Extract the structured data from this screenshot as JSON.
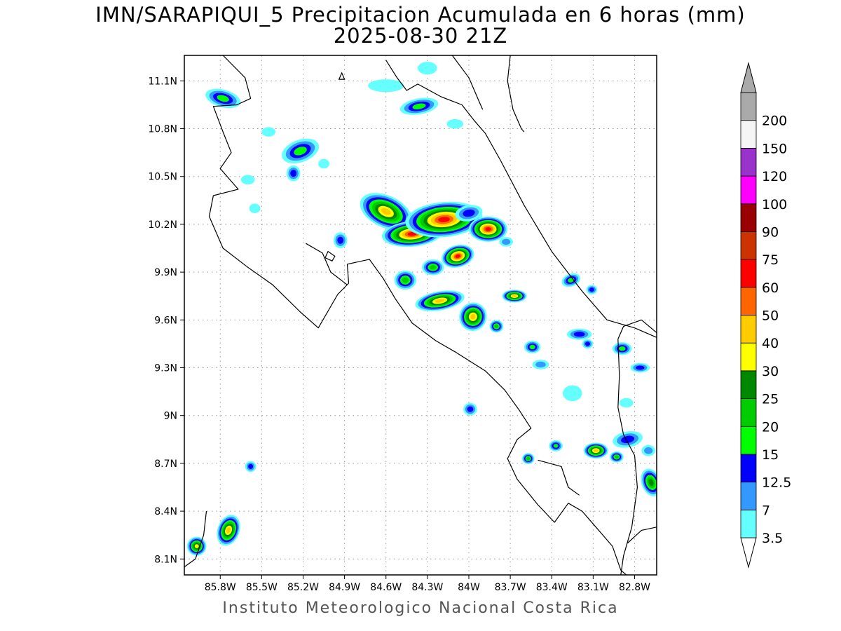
{
  "title_line1": "IMN/SARAPIQUI_5 Precipitacion Acumulada en 6 horas (mm)",
  "title_line2": "2025-08-30 21Z",
  "footer": "Instituto Meteorologico Nacional Costa Rica",
  "map": {
    "lon_range": [
      -86.06,
      -82.64
    ],
    "lat_range": [
      8.0,
      11.26
    ],
    "lon_ticks": [
      {
        "value": -85.8,
        "label": "85.8W"
      },
      {
        "value": -85.5,
        "label": "85.5W"
      },
      {
        "value": -85.2,
        "label": "85.2W"
      },
      {
        "value": -84.9,
        "label": "84.9W"
      },
      {
        "value": -84.6,
        "label": "84.6W"
      },
      {
        "value": -84.3,
        "label": "84.3W"
      },
      {
        "value": -84.0,
        "label": "84W"
      },
      {
        "value": -83.7,
        "label": "83.7W"
      },
      {
        "value": -83.4,
        "label": "83.4W"
      },
      {
        "value": -83.1,
        "label": "83.1W"
      },
      {
        "value": -82.8,
        "label": "82.8W"
      }
    ],
    "lat_ticks": [
      {
        "value": 11.1,
        "label": "11.1N"
      },
      {
        "value": 10.8,
        "label": "10.8N"
      },
      {
        "value": 10.5,
        "label": "10.5N"
      },
      {
        "value": 10.2,
        "label": "10.2N"
      },
      {
        "value": 9.9,
        "label": "9.9N"
      },
      {
        "value": 9.6,
        "label": "9.6N"
      },
      {
        "value": 9.3,
        "label": "9.3N"
      },
      {
        "value": 9.0,
        "label": "9N"
      },
      {
        "value": 8.7,
        "label": "8.7N"
      },
      {
        "value": 8.4,
        "label": "8.4N"
      },
      {
        "value": 8.1,
        "label": "8.1N"
      }
    ],
    "gridlines": true
  },
  "colorbar": {
    "levels": [
      "3.5",
      "7",
      "12.5",
      "15",
      "20",
      "25",
      "30",
      "40",
      "50",
      "60",
      "75",
      "90",
      "100",
      "120",
      "150",
      "200"
    ],
    "colors": [
      "#66ffff",
      "#3399ff",
      "#0000ff",
      "#00ff00",
      "#00cc00",
      "#008800",
      "#ffff00",
      "#ffcc00",
      "#ff6600",
      "#ff0000",
      "#cc3300",
      "#990000",
      "#ff00ff",
      "#9933cc",
      "#f5f5f5",
      "#aaaaaa"
    ],
    "max_arrow_color": "#aaaaaa",
    "min_arrow_color": "#ffffff"
  },
  "rain_cells": [
    {
      "lon": -85.78,
      "lat": 10.99,
      "rx": 0.13,
      "ry": 0.055,
      "peak": 4,
      "rot": 15
    },
    {
      "lon": -85.22,
      "lat": 10.66,
      "rx": 0.14,
      "ry": 0.07,
      "peak": 4,
      "rot": -20
    },
    {
      "lon": -85.27,
      "lat": 10.52,
      "rx": 0.05,
      "ry": 0.05,
      "peak": 3,
      "rot": 0
    },
    {
      "lon": -84.36,
      "lat": 10.94,
      "rx": 0.14,
      "ry": 0.05,
      "peak": 4,
      "rot": -10
    },
    {
      "lon": -84.6,
      "lat": 11.07,
      "rx": 0.13,
      "ry": 0.04,
      "peak": 1,
      "rot": 0
    },
    {
      "lon": -84.3,
      "lat": 11.18,
      "rx": 0.07,
      "ry": 0.04,
      "peak": 1,
      "rot": 0
    },
    {
      "lon": -84.1,
      "lat": 10.83,
      "rx": 0.06,
      "ry": 0.03,
      "peak": 1,
      "rot": 0
    },
    {
      "lon": -84.6,
      "lat": 10.28,
      "rx": 0.2,
      "ry": 0.1,
      "peak": 8,
      "rot": 25
    },
    {
      "lon": -84.41,
      "lat": 10.14,
      "rx": 0.22,
      "ry": 0.08,
      "peak": 10,
      "rot": -5
    },
    {
      "lon": -84.18,
      "lat": 10.23,
      "rx": 0.28,
      "ry": 0.11,
      "peak": 10,
      "rot": -5
    },
    {
      "lon": -84.0,
      "lat": 10.27,
      "rx": 0.1,
      "ry": 0.05,
      "peak": 3,
      "rot": -10
    },
    {
      "lon": -83.86,
      "lat": 10.17,
      "rx": 0.14,
      "ry": 0.08,
      "peak": 10,
      "rot": 0
    },
    {
      "lon": -84.08,
      "lat": 10.0,
      "rx": 0.12,
      "ry": 0.07,
      "peak": 10,
      "rot": -15
    },
    {
      "lon": -84.26,
      "lat": 9.93,
      "rx": 0.08,
      "ry": 0.05,
      "peak": 5,
      "rot": 0
    },
    {
      "lon": -84.46,
      "lat": 9.85,
      "rx": 0.08,
      "ry": 0.06,
      "peak": 5,
      "rot": 0
    },
    {
      "lon": -84.21,
      "lat": 9.72,
      "rx": 0.18,
      "ry": 0.06,
      "peak": 8,
      "rot": -10
    },
    {
      "lon": -83.97,
      "lat": 9.62,
      "rx": 0.1,
      "ry": 0.09,
      "peak": 8,
      "rot": 20
    },
    {
      "lon": -83.8,
      "lat": 9.56,
      "rx": 0.05,
      "ry": 0.04,
      "peak": 5,
      "rot": 0
    },
    {
      "lon": -83.67,
      "lat": 9.75,
      "rx": 0.09,
      "ry": 0.04,
      "peak": 8,
      "rot": 0
    },
    {
      "lon": -83.54,
      "lat": 9.43,
      "rx": 0.06,
      "ry": 0.04,
      "peak": 4,
      "rot": 0
    },
    {
      "lon": -83.48,
      "lat": 9.32,
      "rx": 0.06,
      "ry": 0.03,
      "peak": 2,
      "rot": 0
    },
    {
      "lon": -83.73,
      "lat": 10.09,
      "rx": 0.05,
      "ry": 0.03,
      "peak": 2,
      "rot": 0
    },
    {
      "lon": -83.26,
      "lat": 9.85,
      "rx": 0.07,
      "ry": 0.04,
      "peak": 4,
      "rot": -20
    },
    {
      "lon": -83.11,
      "lat": 9.79,
      "rx": 0.04,
      "ry": 0.03,
      "peak": 3,
      "rot": 0
    },
    {
      "lon": -83.2,
      "lat": 9.51,
      "rx": 0.09,
      "ry": 0.035,
      "peak": 3,
      "rot": 0
    },
    {
      "lon": -83.14,
      "lat": 9.45,
      "rx": 0.04,
      "ry": 0.03,
      "peak": 3,
      "rot": 0
    },
    {
      "lon": -82.89,
      "lat": 9.42,
      "rx": 0.07,
      "ry": 0.04,
      "peak": 4,
      "rot": 0
    },
    {
      "lon": -82.76,
      "lat": 9.3,
      "rx": 0.07,
      "ry": 0.03,
      "peak": 3,
      "rot": 0
    },
    {
      "lon": -83.25,
      "lat": 9.14,
      "rx": 0.07,
      "ry": 0.05,
      "peak": 1,
      "rot": 0
    },
    {
      "lon": -83.99,
      "lat": 9.04,
      "rx": 0.05,
      "ry": 0.04,
      "peak": 3,
      "rot": 0
    },
    {
      "lon": -83.08,
      "lat": 8.78,
      "rx": 0.09,
      "ry": 0.05,
      "peak": 8,
      "rot": 0
    },
    {
      "lon": -83.37,
      "lat": 8.81,
      "rx": 0.05,
      "ry": 0.035,
      "peak": 4,
      "rot": 0
    },
    {
      "lon": -83.57,
      "lat": 8.73,
      "rx": 0.045,
      "ry": 0.035,
      "peak": 5,
      "rot": 0
    },
    {
      "lon": -82.93,
      "lat": 8.74,
      "rx": 0.05,
      "ry": 0.035,
      "peak": 5,
      "rot": 0
    },
    {
      "lon": -82.85,
      "lat": 8.85,
      "rx": 0.11,
      "ry": 0.05,
      "peak": 3,
      "rot": -10
    },
    {
      "lon": -82.68,
      "lat": 8.58,
      "rx": 0.07,
      "ry": 0.09,
      "peak": 6,
      "rot": -20
    },
    {
      "lon": -82.7,
      "lat": 8.78,
      "rx": 0.05,
      "ry": 0.035,
      "peak": 2,
      "rot": 0
    },
    {
      "lon": -85.74,
      "lat": 8.28,
      "rx": 0.08,
      "ry": 0.1,
      "peak": 8,
      "rot": 20
    },
    {
      "lon": -85.97,
      "lat": 8.18,
      "rx": 0.07,
      "ry": 0.06,
      "peak": 7,
      "rot": 0
    },
    {
      "lon": -85.58,
      "lat": 8.68,
      "rx": 0.04,
      "ry": 0.035,
      "peak": 3,
      "rot": 0
    },
    {
      "lon": -84.93,
      "lat": 10.1,
      "rx": 0.05,
      "ry": 0.05,
      "peak": 3,
      "rot": 0
    },
    {
      "lon": -85.45,
      "lat": 10.78,
      "rx": 0.05,
      "ry": 0.03,
      "peak": 1,
      "rot": 0
    },
    {
      "lon": -85.6,
      "lat": 10.48,
      "rx": 0.05,
      "ry": 0.03,
      "peak": 1,
      "rot": 0
    },
    {
      "lon": -85.05,
      "lat": 10.58,
      "rx": 0.04,
      "ry": 0.03,
      "peak": 1,
      "rot": 0
    },
    {
      "lon": -85.55,
      "lat": 10.3,
      "rx": 0.04,
      "ry": 0.03,
      "peak": 1,
      "rot": 0
    },
    {
      "lon": -82.86,
      "lat": 9.08,
      "rx": 0.05,
      "ry": 0.03,
      "peak": 1,
      "rot": 0
    }
  ],
  "coastlines": [
    [
      [
        -85.78,
        11.26
      ],
      [
        -85.62,
        11.12
      ],
      [
        -85.58,
        10.99
      ],
      [
        -85.68,
        10.95
      ],
      [
        -85.85,
        10.94
      ],
      [
        -85.78,
        10.78
      ],
      [
        -85.72,
        10.65
      ],
      [
        -85.8,
        10.55
      ],
      [
        -85.67,
        10.42
      ],
      [
        -85.85,
        10.38
      ],
      [
        -85.88,
        10.25
      ],
      [
        -85.78,
        10.05
      ],
      [
        -85.6,
        9.93
      ],
      [
        -85.42,
        9.82
      ],
      [
        -85.22,
        9.65
      ],
      [
        -85.09,
        9.55
      ],
      [
        -84.95,
        9.76
      ],
      [
        -84.87,
        9.83
      ],
      [
        -84.88,
        9.95
      ],
      [
        -84.72,
        9.98
      ],
      [
        -84.62,
        9.86
      ],
      [
        -84.53,
        9.73
      ],
      [
        -84.41,
        9.58
      ],
      [
        -84.24,
        9.47
      ],
      [
        -84.1,
        9.4
      ],
      [
        -83.88,
        9.28
      ],
      [
        -83.74,
        9.16
      ],
      [
        -83.64,
        9.04
      ],
      [
        -83.55,
        8.92
      ],
      [
        -83.65,
        8.85
      ],
      [
        -83.72,
        8.73
      ],
      [
        -83.65,
        8.6
      ],
      [
        -83.5,
        8.44
      ],
      [
        -83.38,
        8.33
      ],
      [
        -83.28,
        8.45
      ],
      [
        -83.18,
        8.4
      ],
      [
        -83.08,
        8.3
      ],
      [
        -82.96,
        8.18
      ],
      [
        -82.9,
        8.03
      ],
      [
        -82.86,
        8.0
      ]
    ],
    [
      [
        -85.18,
        10.08
      ],
      [
        -85.06,
        10.02
      ],
      [
        -85.0,
        9.9
      ],
      [
        -84.88,
        9.82
      ]
    ],
    [
      [
        -84.6,
        11.23
      ],
      [
        -84.52,
        11.12
      ],
      [
        -84.45,
        11.04
      ],
      [
        -84.37,
        11.08
      ],
      [
        -84.2,
        11.0
      ],
      [
        -84.05,
        10.95
      ],
      [
        -83.96,
        10.85
      ],
      [
        -83.88,
        10.77
      ],
      [
        -83.77,
        10.6
      ],
      [
        -83.6,
        10.32
      ],
      [
        -83.4,
        10.03
      ],
      [
        -83.18,
        9.78
      ],
      [
        -83.0,
        9.6
      ],
      [
        -82.8,
        9.55
      ],
      [
        -82.64,
        9.49
      ]
    ],
    [
      [
        -84.12,
        11.26
      ],
      [
        -84.0,
        11.12
      ],
      [
        -83.92,
        10.96
      ],
      [
        -83.9,
        10.92
      ]
    ],
    [
      [
        -83.7,
        11.26
      ],
      [
        -83.72,
        11.1
      ],
      [
        -83.68,
        10.92
      ],
      [
        -83.62,
        10.8
      ],
      [
        -83.6,
        10.78
      ]
    ],
    [
      [
        -82.64,
        9.52
      ],
      [
        -82.75,
        9.6
      ],
      [
        -82.88,
        9.56
      ],
      [
        -82.92,
        9.48
      ]
    ],
    [
      [
        -82.92,
        9.48
      ],
      [
        -82.91,
        9.25
      ],
      [
        -82.92,
        9.05
      ],
      [
        -82.88,
        8.88
      ],
      [
        -82.8,
        8.75
      ],
      [
        -82.78,
        8.55
      ],
      [
        -82.82,
        8.3
      ],
      [
        -82.88,
        8.12
      ],
      [
        -82.9,
        8.0
      ]
    ],
    [
      [
        -83.5,
        8.72
      ],
      [
        -83.33,
        8.68
      ],
      [
        -83.28,
        8.55
      ],
      [
        -83.2,
        8.5
      ]
    ],
    [
      [
        -85.9,
        8.4
      ],
      [
        -85.92,
        8.25
      ],
      [
        -85.98,
        8.1
      ],
      [
        -86.06,
        8.05
      ]
    ],
    [
      [
        -82.64,
        8.3
      ],
      [
        -82.75,
        8.28
      ],
      [
        -82.85,
        8.2
      ]
    ]
  ],
  "islands": [
    [
      [
        -84.92,
        11.15
      ],
      [
        -84.9,
        11.11
      ],
      [
        -84.94,
        11.11
      ]
    ],
    [
      [
        -85.02,
        10.03
      ],
      [
        -84.97,
        10.0
      ],
      [
        -84.99,
        9.97
      ],
      [
        -85.04,
        9.99
      ]
    ]
  ]
}
